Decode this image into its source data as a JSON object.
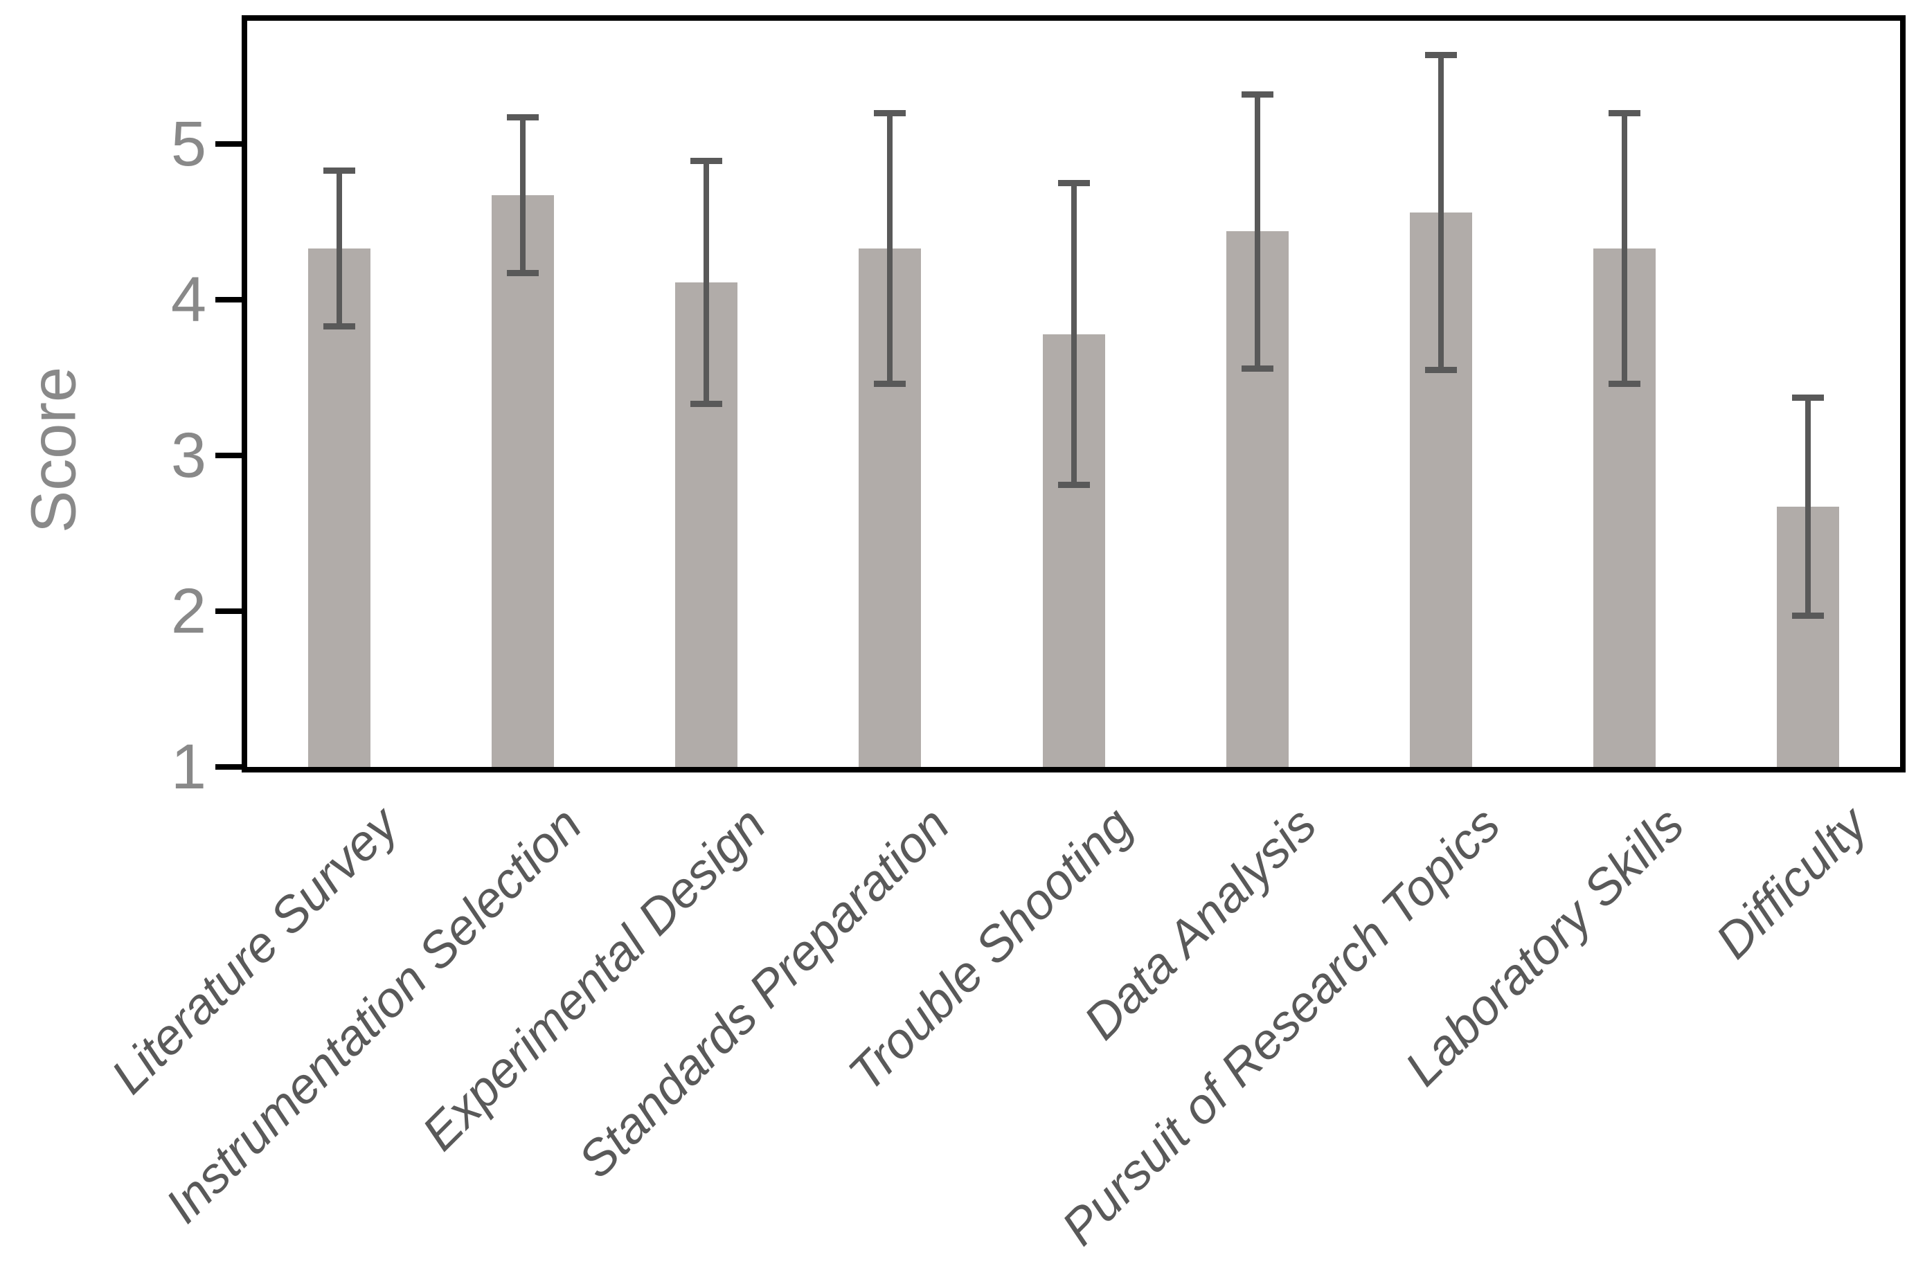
{
  "chart_data": {
    "type": "bar",
    "title": "",
    "xlabel": "",
    "ylabel": "Score",
    "categories": [
      "Literature Survey",
      "Instrumentation Selection",
      "Experimental Design",
      "Standards Preparation",
      "Trouble Shooting",
      "Data Analysis",
      "Pursuit of Research Topics",
      "Laboratory Skills",
      "Difficulty"
    ],
    "values": [
      4.33,
      4.67,
      4.11,
      4.33,
      3.78,
      4.44,
      4.56,
      4.33,
      2.67
    ],
    "errors": [
      0.5,
      0.5,
      0.78,
      0.87,
      0.97,
      0.88,
      1.01,
      0.87,
      0.7
    ],
    "error_tops": [
      4.83,
      5.17,
      4.89,
      5.2,
      4.75,
      5.32,
      5.57,
      5.2,
      3.37
    ],
    "error_bottoms": [
      3.83,
      4.17,
      3.33,
      3.46,
      2.81,
      3.56,
      3.55,
      3.46,
      1.97
    ],
    "yticks": [
      "1",
      "2",
      "3",
      "4",
      "5"
    ],
    "ylim": [
      1,
      5.79
    ],
    "baseline": 1,
    "grid": "off",
    "legend": "none",
    "colors": {
      "bar_fill": "#b1aca9",
      "error_bar": "#595959",
      "axis_line": "#000000",
      "tick_label": "#898989",
      "axis_title": "#898989",
      "category_label": "#595959"
    }
  }
}
